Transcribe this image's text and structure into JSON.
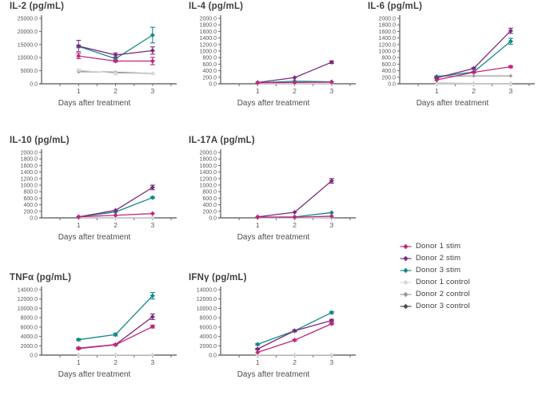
{
  "figure_title": "",
  "colors": {
    "donor1_stim": "#c2267f",
    "donor2_stim": "#7c2a80",
    "donor3_stim": "#15898c",
    "donor1_control": "#d8d8d4",
    "donor2_control": "#9b9b97",
    "donor3_control": "#4c4c4a",
    "axis": "#6d6e71",
    "tick_text": "#58595b",
    "title_text": "#3f3f41"
  },
  "legend": {
    "items": [
      {
        "label": "Donor 1 stim",
        "color_key": "donor1_stim"
      },
      {
        "label": "Donor 2 stim",
        "color_key": "donor2_stim"
      },
      {
        "label": "Donor 3 stim",
        "color_key": "donor3_stim"
      },
      {
        "label": "Donor 1 control",
        "color_key": "donor1_control"
      },
      {
        "label": "Donor 2 control",
        "color_key": "donor2_control"
      },
      {
        "label": "Donor 3 control",
        "color_key": "donor3_control"
      }
    ]
  },
  "chart_data": [
    {
      "type": "line",
      "title": "IL-2 (pg/mL)",
      "xlabel": "Days after treatment",
      "x": [
        1,
        2,
        3
      ],
      "xlim": [
        0,
        3.5
      ],
      "ylim": [
        0,
        25000
      ],
      "ytick_step": 5000,
      "grid": false,
      "series": [
        {
          "name": "Donor 1 stim",
          "color_key": "donor1_stim",
          "values": [
            10600,
            8700,
            8700
          ],
          "yerr": [
            1000,
            400,
            1400
          ]
        },
        {
          "name": "Donor 2 stim",
          "color_key": "donor2_stim",
          "values": [
            14400,
            11000,
            12700
          ],
          "yerr": [
            2200,
            800,
            1400
          ]
        },
        {
          "name": "Donor 3 stim",
          "color_key": "donor3_stim",
          "values": [
            14300,
            9600,
            18600
          ],
          "yerr": [
            500,
            600,
            3000
          ]
        },
        {
          "name": "Donor 1 control",
          "color_key": "donor1_control",
          "values": [
            5200,
            4000,
            3900
          ],
          "yerr": [
            400,
            600,
            300
          ]
        },
        {
          "name": "Donor 2 control",
          "color_key": "donor2_control",
          "values": [
            4800,
            4300,
            3900
          ],
          "yerr": [
            200,
            300,
            200
          ]
        },
        {
          "name": "Donor 3 control",
          "color_key": "donor3_control",
          "values": [
            4700,
            4400,
            3900
          ],
          "yerr": [
            200,
            200,
            200
          ]
        }
      ]
    },
    {
      "type": "line",
      "title": "IL-4 (pg/mL)",
      "xlabel": "Days after treatment",
      "x": [
        1,
        2,
        3
      ],
      "xlim": [
        0,
        3.5
      ],
      "ylim": [
        0,
        2000
      ],
      "ytick_step": 200,
      "grid": false,
      "series": [
        {
          "name": "Donor 1 stim",
          "color_key": "donor1_stim",
          "values": [
            30,
            40,
            50
          ],
          "yerr": [
            10,
            10,
            10
          ]
        },
        {
          "name": "Donor 2 stim",
          "color_key": "donor2_stim",
          "values": [
            40,
            190,
            660
          ],
          "yerr": [
            10,
            15,
            40
          ]
        },
        {
          "name": "Donor 3 stim",
          "color_key": "donor3_stim",
          "values": [
            30,
            80,
            60
          ],
          "yerr": [
            10,
            10,
            10
          ]
        },
        {
          "name": "Donor 1 control",
          "color_key": "donor1_control",
          "values": [
            5,
            5,
            5
          ],
          "yerr": [
            0,
            0,
            0
          ]
        },
        {
          "name": "Donor 2 control",
          "color_key": "donor2_control",
          "values": [
            8,
            8,
            8
          ],
          "yerr": [
            0,
            0,
            0
          ]
        },
        {
          "name": "Donor 3 control",
          "color_key": "donor3_control",
          "values": [
            10,
            10,
            10
          ],
          "yerr": [
            0,
            0,
            0
          ]
        }
      ]
    },
    {
      "type": "line",
      "title": "IL-6 (pg/mL)",
      "xlabel": "Days after treatment",
      "x": [
        1,
        2,
        3
      ],
      "xlim": [
        0,
        3.5
      ],
      "ylim": [
        0,
        2000
      ],
      "ytick_step": 200,
      "grid": false,
      "series": [
        {
          "name": "Donor 1 stim",
          "color_key": "donor1_stim",
          "values": [
            120,
            350,
            520
          ],
          "yerr": [
            15,
            20,
            30
          ]
        },
        {
          "name": "Donor 2 stim",
          "color_key": "donor2_stim",
          "values": [
            180,
            470,
            1620
          ],
          "yerr": [
            20,
            25,
            80
          ]
        },
        {
          "name": "Donor 3 stim",
          "color_key": "donor3_stim",
          "values": [
            220,
            360,
            1300
          ],
          "yerr": [
            20,
            20,
            90
          ]
        },
        {
          "name": "Donor 1 control",
          "color_key": "donor1_control",
          "values": [
            5,
            5,
            5
          ],
          "yerr": [
            0,
            0,
            0
          ]
        },
        {
          "name": "Donor 2 control",
          "color_key": "donor2_control",
          "values": [
            230,
            240,
            240
          ],
          "yerr": [
            10,
            10,
            10
          ]
        },
        {
          "name": "Donor 3 control",
          "color_key": "donor3_control",
          "values": [
            15,
            10,
            10
          ],
          "yerr": [
            0,
            0,
            0
          ]
        }
      ]
    },
    {
      "type": "line",
      "title": "IL-10 (pg/mL)",
      "xlabel": "Days after treatment",
      "x": [
        1,
        2,
        3
      ],
      "xlim": [
        0,
        3.5
      ],
      "ylim": [
        0,
        2000
      ],
      "ytick_step": 200,
      "grid": false,
      "series": [
        {
          "name": "Donor 1 stim",
          "color_key": "donor1_stim",
          "values": [
            30,
            80,
            130
          ],
          "yerr": [
            5,
            10,
            15
          ]
        },
        {
          "name": "Donor 2 stim",
          "color_key": "donor2_stim",
          "values": [
            30,
            230,
            930
          ],
          "yerr": [
            5,
            15,
            70
          ]
        },
        {
          "name": "Donor 3 stim",
          "color_key": "donor3_stim",
          "values": [
            30,
            180,
            620
          ],
          "yerr": [
            5,
            15,
            30
          ]
        },
        {
          "name": "Donor 1 control",
          "color_key": "donor1_control",
          "values": [
            5,
            5,
            5
          ],
          "yerr": [
            0,
            0,
            0
          ]
        },
        {
          "name": "Donor 2 control",
          "color_key": "donor2_control",
          "values": [
            8,
            8,
            8
          ],
          "yerr": [
            0,
            0,
            0
          ]
        },
        {
          "name": "Donor 3 control",
          "color_key": "donor3_control",
          "values": [
            10,
            10,
            10
          ],
          "yerr": [
            0,
            0,
            0
          ]
        }
      ]
    },
    {
      "type": "line",
      "title": "IL-17A (pg/mL)",
      "xlabel": "Days after treatment",
      "x": [
        1,
        2,
        3
      ],
      "xlim": [
        0,
        3.5
      ],
      "ylim": [
        0,
        2000
      ],
      "ytick_step": 200,
      "grid": false,
      "series": [
        {
          "name": "Donor 1 stim",
          "color_key": "donor1_stim",
          "values": [
            25,
            20,
            50
          ],
          "yerr": [
            5,
            5,
            10
          ]
        },
        {
          "name": "Donor 2 stim",
          "color_key": "donor2_stim",
          "values": [
            30,
            170,
            1130
          ],
          "yerr": [
            5,
            10,
            70
          ]
        },
        {
          "name": "Donor 3 stim",
          "color_key": "donor3_stim",
          "values": [
            20,
            30,
            160
          ],
          "yerr": [
            5,
            5,
            15
          ]
        },
        {
          "name": "Donor 1 control",
          "color_key": "donor1_control",
          "values": [
            5,
            5,
            5
          ],
          "yerr": [
            0,
            0,
            0
          ]
        },
        {
          "name": "Donor 2 control",
          "color_key": "donor2_control",
          "values": [
            8,
            8,
            8
          ],
          "yerr": [
            0,
            0,
            0
          ]
        },
        {
          "name": "Donor 3 control",
          "color_key": "donor3_control",
          "values": [
            10,
            10,
            10
          ],
          "yerr": [
            0,
            0,
            0
          ]
        }
      ]
    },
    {
      "type": "line",
      "title": "TNFα (pg/mL)",
      "xlabel": "Days after treatment",
      "x": [
        1,
        2,
        3
      ],
      "xlim": [
        0,
        3.5
      ],
      "ylim": [
        0,
        14000
      ],
      "ytick_step": 2000,
      "grid": false,
      "series": [
        {
          "name": "Donor 1 stim",
          "color_key": "donor1_stim",
          "values": [
            1400,
            2200,
            6100
          ],
          "yerr": [
            150,
            150,
            300
          ]
        },
        {
          "name": "Donor 2 stim",
          "color_key": "donor2_stim",
          "values": [
            1500,
            2250,
            8200
          ],
          "yerr": [
            150,
            150,
            600
          ]
        },
        {
          "name": "Donor 3 stim",
          "color_key": "donor3_stim",
          "values": [
            3300,
            4400,
            12700
          ],
          "yerr": [
            200,
            300,
            700
          ]
        },
        {
          "name": "Donor 1 control",
          "color_key": "donor1_control",
          "values": [
            60,
            60,
            60
          ],
          "yerr": [
            0,
            0,
            0
          ]
        },
        {
          "name": "Donor 2 control",
          "color_key": "donor2_control",
          "values": [
            60,
            60,
            60
          ],
          "yerr": [
            0,
            0,
            0
          ]
        },
        {
          "name": "Donor 3 control",
          "color_key": "donor3_control",
          "values": [
            60,
            60,
            60
          ],
          "yerr": [
            0,
            0,
            0
          ]
        }
      ]
    },
    {
      "type": "line",
      "title": "IFNγ (pg/mL)",
      "xlabel": "Days after treatment",
      "x": [
        1,
        2,
        3
      ],
      "xlim": [
        0,
        3.5
      ],
      "ylim": [
        0,
        14000
      ],
      "ytick_step": 2000,
      "grid": false,
      "series": [
        {
          "name": "Donor 1 stim",
          "color_key": "donor1_stim",
          "values": [
            600,
            3200,
            6700
          ],
          "yerr": [
            100,
            150,
            200
          ]
        },
        {
          "name": "Donor 2 stim",
          "color_key": "donor2_stim",
          "values": [
            1300,
            5200,
            7400
          ],
          "yerr": [
            150,
            200,
            250
          ]
        },
        {
          "name": "Donor 3 stim",
          "color_key": "donor3_stim",
          "values": [
            2300,
            5200,
            9100
          ],
          "yerr": [
            200,
            200,
            250
          ]
        },
        {
          "name": "Donor 1 control",
          "color_key": "donor1_control",
          "values": [
            60,
            60,
            60
          ],
          "yerr": [
            0,
            0,
            0
          ]
        },
        {
          "name": "Donor 2 control",
          "color_key": "donor2_control",
          "values": [
            60,
            60,
            60
          ],
          "yerr": [
            0,
            0,
            0
          ]
        },
        {
          "name": "Donor 3 control",
          "color_key": "donor3_control",
          "values": [
            60,
            60,
            60
          ],
          "yerr": [
            0,
            0,
            0
          ]
        }
      ]
    }
  ]
}
